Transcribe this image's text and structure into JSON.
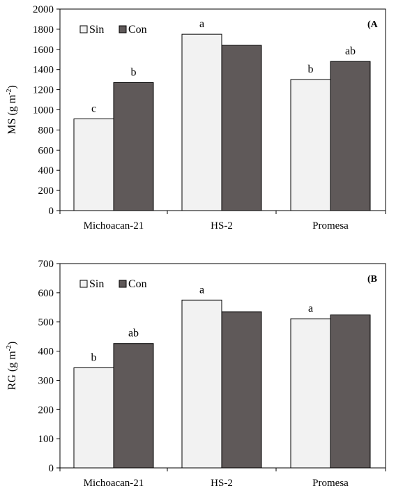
{
  "colors": {
    "sin": "#f2f2f2",
    "con": "#5f5959",
    "edge": "#000000"
  },
  "chart_data": [
    {
      "type": "bar",
      "panel_label": "(A",
      "ylabel_main": "MS (g m",
      "ylabel_sup": "-2",
      "ylabel_end": ")",
      "ylim": [
        0,
        2000
      ],
      "yticks": [
        "0",
        "200",
        "400",
        "600",
        "800",
        "1000",
        "1200",
        "1400",
        "1600",
        "1800",
        "2000"
      ],
      "categories": [
        "Michoacan-21",
        "HS-2",
        "Promesa"
      ],
      "legend": [
        "Sin",
        "Con"
      ],
      "legend_position": "top-left",
      "series": [
        {
          "name": "Sin",
          "values": [
            910,
            1750,
            1300
          ]
        },
        {
          "name": "Con",
          "values": [
            1270,
            1640,
            1480
          ]
        }
      ],
      "annotations": [
        {
          "category": "Michoacan-21",
          "series": "Sin",
          "text": "c"
        },
        {
          "category": "Michoacan-21",
          "series": "Con",
          "text": "b"
        },
        {
          "category": "HS-2",
          "series": "Sin",
          "text": "a"
        },
        {
          "category": "Promesa",
          "series": "Sin",
          "text": "b"
        },
        {
          "category": "Promesa",
          "series": "Con",
          "text": "ab"
        }
      ]
    },
    {
      "type": "bar",
      "panel_label": "(B",
      "ylabel_main": "RG (g m",
      "ylabel_sup": "-2",
      "ylabel_end": ")",
      "ylim": [
        0,
        700
      ],
      "yticks": [
        "0",
        "100",
        "200",
        "300",
        "400",
        "500",
        "600",
        "700"
      ],
      "categories": [
        "Michoacan-21",
        "HS-2",
        "Promesa"
      ],
      "legend": [
        "Sin",
        "Con"
      ],
      "legend_position": "top-left",
      "series": [
        {
          "name": "Sin",
          "values": [
            343,
            575,
            511
          ]
        },
        {
          "name": "Con",
          "values": [
            426,
            535,
            524
          ]
        }
      ],
      "annotations": [
        {
          "category": "Michoacan-21",
          "series": "Sin",
          "text": "b"
        },
        {
          "category": "Michoacan-21",
          "series": "Con",
          "text": "ab"
        },
        {
          "category": "HS-2",
          "series": "Sin",
          "text": "a"
        },
        {
          "category": "Promesa",
          "series": "Sin",
          "text": "a"
        }
      ]
    }
  ]
}
